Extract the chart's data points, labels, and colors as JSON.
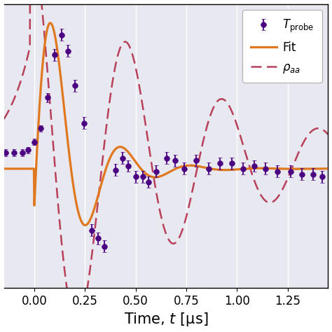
{
  "xlabel": "Time, $t$ [μs]",
  "xlim": [
    -0.15,
    1.45
  ],
  "dot_color": "#4b0082",
  "fit_color": "#e07820",
  "rho_color": "#b8405a",
  "scatter_x": [
    -0.14,
    -0.1,
    -0.06,
    -0.03,
    0.0,
    0.03,
    0.065,
    0.1,
    0.135,
    0.165,
    0.2,
    0.245,
    0.285,
    0.315,
    0.345,
    0.4,
    0.435,
    0.465,
    0.5,
    0.535,
    0.565,
    0.6,
    0.655,
    0.695,
    0.74,
    0.8,
    0.86,
    0.915,
    0.975,
    1.03,
    1.085,
    1.14,
    1.2,
    1.265,
    1.32,
    1.375,
    1.42
  ],
  "scatter_y": [
    0.525,
    0.525,
    0.525,
    0.535,
    0.565,
    0.615,
    0.73,
    0.89,
    0.965,
    0.905,
    0.775,
    0.635,
    0.235,
    0.205,
    0.175,
    0.46,
    0.505,
    0.475,
    0.435,
    0.435,
    0.415,
    0.455,
    0.505,
    0.495,
    0.465,
    0.495,
    0.465,
    0.485,
    0.485,
    0.465,
    0.475,
    0.465,
    0.455,
    0.455,
    0.445,
    0.445,
    0.435
  ],
  "scatter_yerr": [
    0.012,
    0.012,
    0.012,
    0.012,
    0.012,
    0.012,
    0.018,
    0.022,
    0.022,
    0.022,
    0.022,
    0.022,
    0.022,
    0.022,
    0.022,
    0.022,
    0.022,
    0.022,
    0.022,
    0.022,
    0.022,
    0.022,
    0.022,
    0.022,
    0.022,
    0.022,
    0.022,
    0.022,
    0.022,
    0.022,
    0.022,
    0.022,
    0.022,
    0.022,
    0.022,
    0.022,
    0.022
  ],
  "background_color": "#e8e8f0",
  "grid_color": "#ffffff",
  "figsize": [
    4.74,
    4.74
  ],
  "dpi": 100
}
